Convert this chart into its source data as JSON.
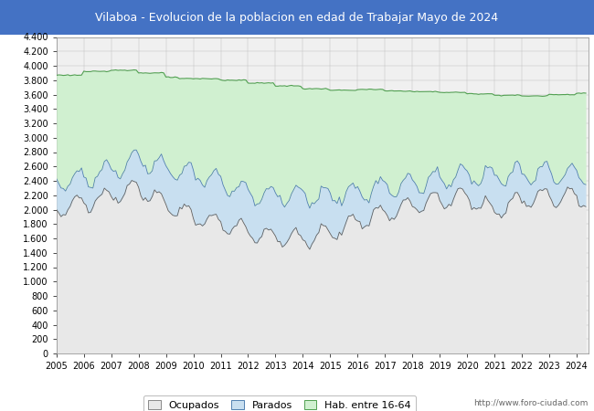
{
  "title": "Vilaboa - Evolucion de la poblacion en edad de Trabajar Mayo de 2024",
  "title_bg": "#4472C4",
  "title_color": "white",
  "ylim": [
    0,
    4400
  ],
  "ytick_step": 200,
  "fill_ocupados": "#e8e8e8",
  "fill_parados": "#c8dff0",
  "fill_hab": "#d0f0d0",
  "line_ocupados": "#606060",
  "line_parados": "#5080b0",
  "line_hab": "#50a050",
  "footer_text": "http://www.foro-ciudad.com",
  "plot_bg": "#f0f0f0",
  "outer_bg": "#ffffff",
  "legend_labels": [
    "Ocupados",
    "Parados",
    "Hab. entre 16-64"
  ],
  "legend_fill": [
    "#e8e8e8",
    "#c8dff0",
    "#d0f0d0"
  ],
  "legend_edge": [
    "#888888",
    "#5080b0",
    "#50a050"
  ]
}
